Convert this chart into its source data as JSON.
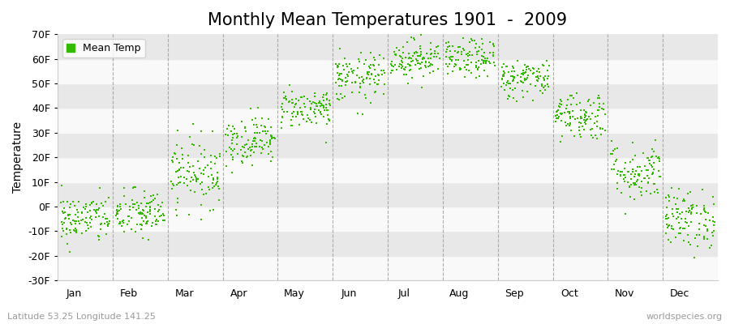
{
  "title": "Monthly Mean Temperatures 1901  -  2009",
  "ylabel": "Temperature",
  "xlabel_bottom_left": "Latitude 53.25 Longitude 141.25",
  "xlabel_bottom_right": "worldspecies.org",
  "legend_label": "Mean Temp",
  "ylim": [
    -30,
    70
  ],
  "yticks": [
    -30,
    -20,
    -10,
    0,
    10,
    20,
    30,
    40,
    50,
    60,
    70
  ],
  "ytick_labels": [
    "-30F",
    "-20F",
    "-10F",
    "0F",
    "10F",
    "20F",
    "30F",
    "40F",
    "50F",
    "60F",
    "70F"
  ],
  "months": [
    "Jan",
    "Feb",
    "Mar",
    "Apr",
    "May",
    "Jun",
    "Jul",
    "Aug",
    "Sep",
    "Oct",
    "Nov",
    "Dec"
  ],
  "dot_color": "#33bb00",
  "bg_color": "#f2f2f2",
  "stripe_light": "#f9f9f9",
  "stripe_dark": "#e8e8e8",
  "grid_color": "#999999",
  "title_fontsize": 15,
  "label_fontsize": 10,
  "tick_fontsize": 9,
  "n_years": 109,
  "monthly_means_F": [
    -5,
    -3,
    14,
    27,
    40,
    52,
    60,
    60,
    52,
    37,
    14,
    -5
  ],
  "monthly_std_F": [
    5,
    5,
    7,
    5,
    4,
    5,
    4,
    4,
    4,
    5,
    6,
    6
  ]
}
